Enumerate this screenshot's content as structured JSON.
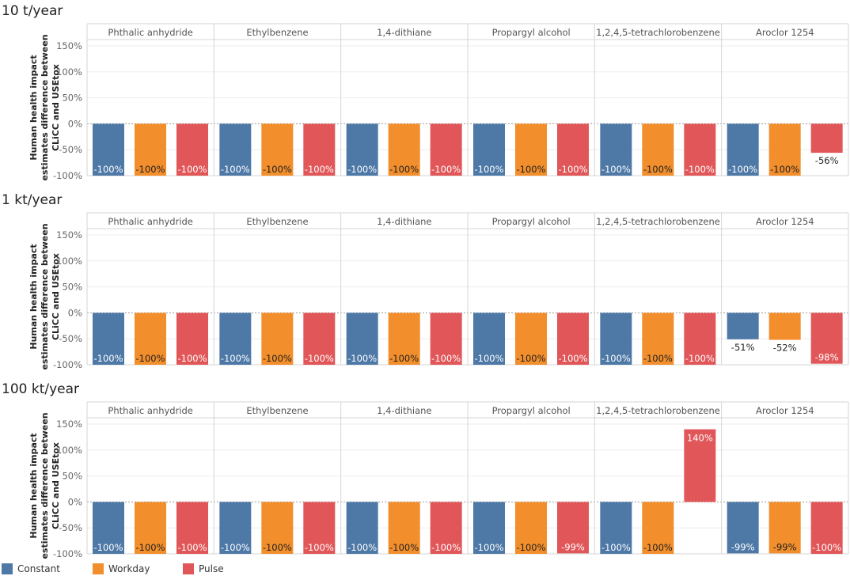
{
  "chart_data": {
    "type": "bar",
    "ylabel_lines": [
      "Human health impact",
      "estimates difference between",
      "CLiCC and USEtox"
    ],
    "ylabel": "Human health impact estimates difference between CLiCC and USEtox",
    "yticks": [
      -100,
      -50,
      0,
      50,
      100,
      150
    ],
    "ytick_labels": [
      "-100%",
      "-50%",
      "0%",
      "50%",
      "100%",
      "150%"
    ],
    "ylim": [
      -100,
      150
    ],
    "categories": [
      "Phthalic anhydride",
      "Ethylbenzene",
      "1,4-dithiane",
      "Propargyl alcohol",
      "1,2,4,5-tetrachlorobenzene",
      "Aroclor 1254"
    ],
    "series_names": [
      "Constant",
      "Workday",
      "Pulse"
    ],
    "colors": [
      "#4e79a7",
      "#f28e2b",
      "#e15759"
    ],
    "panels": [
      {
        "title": "10 t/year",
        "series": [
          {
            "name": "Constant",
            "values": [
              -100,
              -100,
              -100,
              -100,
              -100,
              -100
            ],
            "labels": [
              "-100%",
              "-100%",
              "-100%",
              "-100%",
              "-100%",
              "-100%"
            ]
          },
          {
            "name": "Workday",
            "values": [
              -100,
              -100,
              -100,
              -100,
              -100,
              -100
            ],
            "labels": [
              "-100%",
              "-100%",
              "-100%",
              "-100%",
              "-100%",
              "-100%"
            ]
          },
          {
            "name": "Pulse",
            "values": [
              -100,
              -100,
              -100,
              -100,
              -100,
              -56
            ],
            "labels": [
              "-100%",
              "-100%",
              "-100%",
              "-100%",
              "-100%",
              "-56%"
            ]
          }
        ]
      },
      {
        "title": "1 kt/year",
        "series": [
          {
            "name": "Constant",
            "values": [
              -100,
              -100,
              -100,
              -100,
              -100,
              -51
            ],
            "labels": [
              "-100%",
              "-100%",
              "-100%",
              "-100%",
              "-100%",
              "-51%"
            ]
          },
          {
            "name": "Workday",
            "values": [
              -100,
              -100,
              -100,
              -100,
              -100,
              -52
            ],
            "labels": [
              "-100%",
              "-100%",
              "-100%",
              "-100%",
              "-100%",
              "-52%"
            ]
          },
          {
            "name": "Pulse",
            "values": [
              -100,
              -100,
              -100,
              -100,
              -100,
              -98
            ],
            "labels": [
              "-100%",
              "-100%",
              "-100%",
              "-100%",
              "-100%",
              "-98%"
            ]
          }
        ]
      },
      {
        "title": "100 kt/year",
        "series": [
          {
            "name": "Constant",
            "values": [
              -100,
              -100,
              -100,
              -100,
              -100,
              -99
            ],
            "labels": [
              "-100%",
              "-100%",
              "-100%",
              "-100%",
              "-100%",
              "-99%"
            ]
          },
          {
            "name": "Workday",
            "values": [
              -100,
              -100,
              -100,
              -100,
              -100,
              -99
            ],
            "labels": [
              "-100%",
              "-100%",
              "-100%",
              "-100%",
              "-100%",
              "-99%"
            ]
          },
          {
            "name": "Pulse",
            "values": [
              -100,
              -100,
              -100,
              -99,
              140,
              -100
            ],
            "labels": [
              "-100%",
              "-100%",
              "-100%",
              "-99%",
              "140%",
              "-100%"
            ]
          }
        ]
      }
    ],
    "legend": [
      {
        "name": "Constant",
        "color": "#4e79a7"
      },
      {
        "name": "Workday",
        "color": "#f28e2b"
      },
      {
        "name": "Pulse",
        "color": "#e15759"
      }
    ]
  }
}
